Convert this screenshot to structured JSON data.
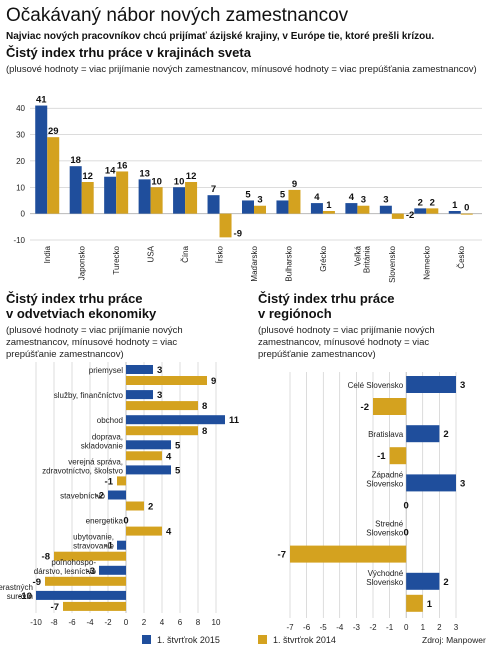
{
  "title": "Očakávaný nábor nových zamestnancov",
  "subtitle": "Najviac nových pracovníkov chcú prijímať ázijské krajiny, v Európe tie, ktoré prešli krízou.",
  "legend": {
    "s2015": "1. štvrťrok 2015",
    "s2014": "1. štvrťrok 2014"
  },
  "source": "Zdroj: Manpower",
  "colors": {
    "s2015": "#1f4e9c",
    "s2014": "#d4a21f",
    "grid": "#b9b9b9"
  },
  "chart_data": [
    {
      "type": "bar",
      "title": "Čistý index trhu práce v krajinách sveta",
      "note": "(plusové hodnoty = viac prijímanie nových zamestnancov, mínusové hodnoty = viac prepúšťania zamestnancov)",
      "categories": [
        "India",
        "Japonsko",
        "Turecko",
        "USA",
        "Čína",
        "Írsko",
        "Maďarsko",
        "Bulharsko",
        "Grécko",
        "Veľká Británia",
        "Slovensko",
        "Nemecko",
        "Česko"
      ],
      "category_lines": [
        [
          "India"
        ],
        [
          "Japonsko"
        ],
        [
          "Turecko"
        ],
        [
          "USA"
        ],
        [
          "Čína"
        ],
        [
          "Írsko"
        ],
        [
          "Maďarsko"
        ],
        [
          "Bulharsko"
        ],
        [
          "Grécko"
        ],
        [
          "Veľká",
          "Británia"
        ],
        [
          "Slovensko"
        ],
        [
          "Nemecko"
        ],
        [
          "Česko"
        ]
      ],
      "series": [
        {
          "name": "1. štvrťrok 2015",
          "values": [
            41,
            18,
            14,
            13,
            10,
            7,
            5,
            5,
            4,
            4,
            3,
            2,
            1
          ]
        },
        {
          "name": "1. štvrťrok 2014",
          "values": [
            29,
            12,
            16,
            10,
            12,
            -9,
            3,
            9,
            1,
            3,
            -2,
            2,
            0
          ]
        }
      ],
      "y_ticks": [
        40,
        30,
        20,
        10,
        0,
        -10
      ],
      "ylim": [
        -10,
        45
      ],
      "grid": true
    },
    {
      "type": "bar",
      "orientation": "horizontal",
      "title_lines": [
        "Čistý index trhu práce",
        "v odvetviach ekonomiky"
      ],
      "note_lines": [
        "(plusové hodnoty = viac prijímanie nových",
        "zamestnancov, mínusové hodnoty = viac",
        "prepúšťanie zamestnancov)"
      ],
      "categories": [
        "priemysel",
        "služby, finančníctvo",
        "obchod",
        "doprava, skladovanie",
        "verejná správa, zdravotníctvo, školstvo",
        "stavebníctvo",
        "energetika",
        "ubytovanie, stravovanie",
        "poľnohospodárstvo, lesníctvo",
        "ťažba nerastných surovín"
      ],
      "category_lines": [
        [
          "priemysel"
        ],
        [
          "služby, finančníctvo"
        ],
        [
          "obchod"
        ],
        [
          "doprava,",
          "skladovanie"
        ],
        [
          "verejná správa,",
          "zdravotníctvo, školstvo"
        ],
        [
          "stavebníctvo"
        ],
        [
          "energetika"
        ],
        [
          "ubytovanie,",
          "stravovanie"
        ],
        [
          "poľnohospo-",
          "dárstvo, lesníctvo"
        ],
        [
          "ťažba nerastných",
          "surovín"
        ]
      ],
      "series": [
        {
          "name": "1. štvrťrok 2015",
          "values": [
            3,
            3,
            11,
            5,
            5,
            -2,
            0,
            -1,
            -3,
            -10
          ]
        },
        {
          "name": "1. štvrťrok 2014",
          "values": [
            9,
            8,
            8,
            4,
            -1,
            2,
            4,
            -8,
            -9,
            -7
          ]
        }
      ],
      "x_ticks": [
        "-10",
        "-8",
        "-6",
        "-4",
        "-2",
        "0",
        "2",
        "4",
        "6",
        "8",
        "10"
      ],
      "xlim": [
        -10,
        11
      ],
      "grid": true
    },
    {
      "type": "bar",
      "orientation": "horizontal",
      "title_lines": [
        "Čistý index trhu práce",
        "v regiónoch"
      ],
      "note_lines": [
        "(plusové hodnoty = viac prijímanie nových",
        "zamestnancov, mínusové hodnoty = viac",
        "prepúšťanie zamestnancov)"
      ],
      "categories": [
        "Celé Slovensko",
        "Bratislava",
        "Západné Slovensko",
        "Stredné Slovensko",
        "Východné Slovensko"
      ],
      "category_lines": [
        [
          "Celé Slovensko"
        ],
        [
          "Bratislava"
        ],
        [
          "Západné",
          "Slovensko"
        ],
        [
          "Stredné",
          "Slovensko"
        ],
        [
          "Východné",
          "Slovensko"
        ]
      ],
      "series": [
        {
          "name": "1. štvrťrok 2015",
          "values": [
            3,
            2,
            3,
            0,
            2
          ]
        },
        {
          "name": "1. štvrťrok 2014",
          "values": [
            -2,
            -1,
            0,
            -7,
            1
          ]
        }
      ],
      "x_ticks": [
        "-7",
        "-6",
        "-5",
        "-4",
        "-3",
        "-2",
        "-1",
        "0",
        "1",
        "2",
        "3"
      ],
      "xlim": [
        -7,
        3
      ],
      "grid": true
    }
  ]
}
